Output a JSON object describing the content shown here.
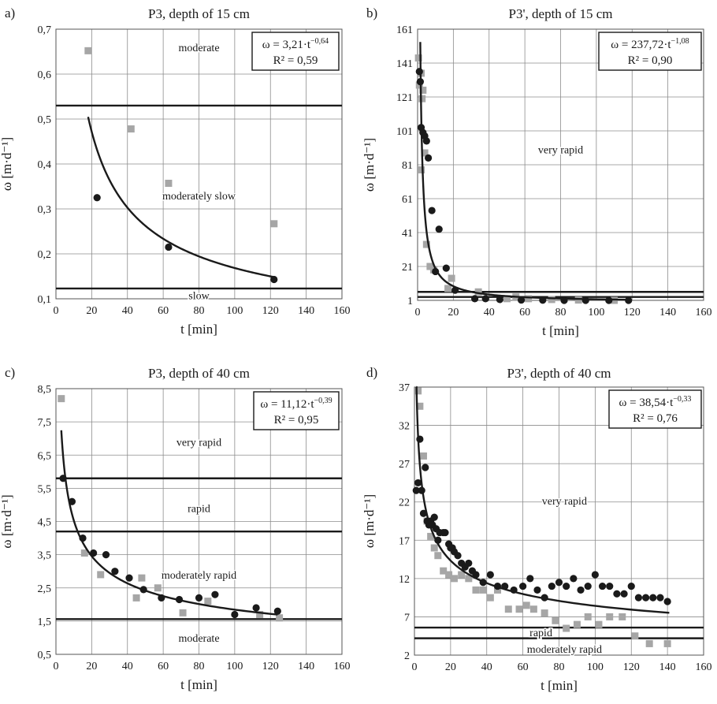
{
  "chart_data": [
    {
      "type": "scatter",
      "panel_label": "a)",
      "title": "P3, depth of 15 cm",
      "xlabel": "t [min]",
      "ylabel": "ω [m·d⁻¹]",
      "xlim": [
        0,
        160
      ],
      "ylim": [
        0.1,
        0.7
      ],
      "xticks": [
        0,
        20,
        40,
        60,
        80,
        100,
        120,
        140,
        160
      ],
      "yticks": [
        0.1,
        0.2,
        0.3,
        0.4,
        0.5,
        0.6,
        0.7
      ],
      "xtick_labels": [
        "0",
        "20",
        "40",
        "60",
        "80",
        "100",
        "120",
        "140",
        "160"
      ],
      "ytick_labels": [
        "0,1",
        "0,2",
        "0,3",
        "0,4",
        "0,5",
        "0,6",
        "0,7"
      ],
      "grid": true,
      "series": [
        {
          "marker": "circle",
          "color": "#1a1a1a",
          "points": [
            [
              23,
              0.325
            ],
            [
              63,
              0.215
            ],
            [
              122,
              0.143
            ]
          ]
        },
        {
          "marker": "square",
          "color": "#a6a6a6",
          "points": [
            [
              18,
              0.652
            ],
            [
              42,
              0.478
            ],
            [
              63,
              0.357
            ],
            [
              122,
              0.267
            ]
          ]
        }
      ],
      "fit": {
        "a": 3.21,
        "b": -0.64,
        "x_range": [
          18,
          122
        ]
      },
      "equation": {
        "prefix": "ω = 3,21·t",
        "exponent": "−0,64",
        "r2": "R² = 0,59"
      },
      "hlines": [
        0.53,
        0.123
      ],
      "zones": [
        {
          "label": "moderate",
          "x": 80,
          "y": 0.66
        },
        {
          "label": "moderately slow",
          "x": 80,
          "y": 0.33
        },
        {
          "label": "slow",
          "x": 80,
          "y": 0.108
        }
      ]
    },
    {
      "type": "scatter",
      "panel_label": "b)",
      "title": "P3', depth of 15 cm",
      "xlabel": "t [min]",
      "ylabel": "ω [m·d⁻¹]",
      "xlim": [
        0,
        160
      ],
      "ylim": [
        1,
        161
      ],
      "xticks": [
        0,
        20,
        40,
        60,
        80,
        100,
        120,
        140,
        160
      ],
      "yticks": [
        1,
        21,
        41,
        61,
        81,
        101,
        121,
        141,
        161
      ],
      "xtick_labels": [
        "0",
        "20",
        "40",
        "60",
        "80",
        "100",
        "120",
        "140",
        "160"
      ],
      "ytick_labels": [
        "1",
        "21",
        "41",
        "61",
        "81",
        "101",
        "121",
        "141",
        "161"
      ],
      "grid": true,
      "series": [
        {
          "marker": "circle",
          "color": "#1a1a1a",
          "points": [
            [
              1,
              136
            ],
            [
              1.5,
              130
            ],
            [
              2,
              103
            ],
            [
              3,
              100
            ],
            [
              4,
              98
            ],
            [
              5,
              95
            ],
            [
              6,
              85
            ],
            [
              8,
              54
            ],
            [
              10,
              18
            ],
            [
              12,
              43
            ],
            [
              16,
              20
            ],
            [
              21,
              7
            ],
            [
              32,
              2
            ],
            [
              38,
              2
            ],
            [
              46,
              1.5
            ],
            [
              58,
              1.2
            ],
            [
              70,
              1.1
            ],
            [
              82,
              1
            ],
            [
              94,
              1
            ],
            [
              107,
              1
            ],
            [
              118,
              1
            ]
          ]
        },
        {
          "marker": "square",
          "color": "#a6a6a6",
          "points": [
            [
              0.5,
              144
            ],
            [
              1,
              128
            ],
            [
              2,
              135
            ],
            [
              2.5,
              120
            ],
            [
              3,
              125
            ],
            [
              4,
              88
            ],
            [
              5,
              34
            ],
            [
              2,
              78
            ],
            [
              7,
              21
            ],
            [
              9,
              19
            ],
            [
              17,
              8
            ],
            [
              19,
              14
            ],
            [
              34,
              6
            ],
            [
              50,
              2
            ],
            [
              55,
              3
            ],
            [
              62,
              2
            ],
            [
              75,
              1.5
            ],
            [
              90,
              1.2
            ],
            [
              110,
              1
            ]
          ]
        }
      ],
      "fit": {
        "a": 237.72,
        "b": -1.08,
        "x_range": [
          1.5,
          118
        ]
      },
      "equation": {
        "prefix": "ω = 237,72·t",
        "exponent": "−1,08",
        "r2": "R² = 0,90"
      },
      "hlines": [
        6,
        3
      ],
      "zones": [
        {
          "label": "very rapid",
          "x": 80,
          "y": 90
        }
      ]
    },
    {
      "type": "scatter",
      "panel_label": "c)",
      "title": "P3, depth of 40 cm",
      "xlabel": "t [min]",
      "ylabel": "ω [m·d⁻¹]",
      "xlim": [
        0,
        160
      ],
      "ylim": [
        0.5,
        8.5
      ],
      "xticks": [
        0,
        20,
        40,
        60,
        80,
        100,
        120,
        140,
        160
      ],
      "yticks": [
        0.5,
        1.5,
        2.5,
        3.5,
        4.5,
        5.5,
        6.5,
        7.5,
        8.5
      ],
      "xtick_labels": [
        "0",
        "20",
        "40",
        "60",
        "80",
        "100",
        "120",
        "140",
        "160"
      ],
      "ytick_labels": [
        "0,5",
        "1,5",
        "2,5",
        "3,5",
        "4,5",
        "5,5",
        "6,5",
        "7,5",
        "8,5"
      ],
      "grid": true,
      "series": [
        {
          "marker": "circle",
          "color": "#1a1a1a",
          "points": [
            [
              4,
              5.8
            ],
            [
              9,
              5.1
            ],
            [
              15,
              4.0
            ],
            [
              21,
              3.55
            ],
            [
              28,
              3.5
            ],
            [
              33,
              3.0
            ],
            [
              41,
              2.8
            ],
            [
              49,
              2.45
            ],
            [
              59,
              2.2
            ],
            [
              69,
              2.15
            ],
            [
              80,
              2.2
            ],
            [
              89,
              2.3
            ],
            [
              100,
              1.7
            ],
            [
              112,
              1.9
            ],
            [
              124,
              1.8
            ]
          ]
        },
        {
          "marker": "square",
          "color": "#a6a6a6",
          "points": [
            [
              3,
              8.2
            ],
            [
              16,
              3.55
            ],
            [
              25,
              2.9
            ],
            [
              45,
              2.2
            ],
            [
              48,
              2.8
            ],
            [
              57,
              2.5
            ],
            [
              71,
              1.75
            ],
            [
              85,
              2.1
            ],
            [
              114,
              1.7
            ],
            [
              125,
              1.6
            ]
          ]
        }
      ],
      "fit": {
        "a": 11.12,
        "b": -0.39,
        "x_range": [
          3,
          124
        ]
      },
      "equation": {
        "prefix": "ω = 11,12·t",
        "exponent": "−0,39",
        "r2": "R² = 0,95"
      },
      "hlines": [
        5.8,
        4.2,
        1.56
      ],
      "zones": [
        {
          "label": "very rapid",
          "x": 80,
          "y": 6.9
        },
        {
          "label": "rapid",
          "x": 80,
          "y": 4.9
        },
        {
          "label": "moderately rapid",
          "x": 80,
          "y": 2.9
        },
        {
          "label": "moderate",
          "x": 80,
          "y": 1.0
        }
      ]
    },
    {
      "type": "scatter",
      "panel_label": "d)",
      "title": "P3', depth of 40 cm",
      "xlabel": "t [min]",
      "ylabel": "ω [m·d⁻¹]",
      "xlim": [
        0,
        160
      ],
      "ylim": [
        2,
        37
      ],
      "xticks": [
        0,
        20,
        40,
        60,
        80,
        100,
        120,
        140,
        160
      ],
      "yticks": [
        2,
        7,
        12,
        17,
        22,
        27,
        32,
        37
      ],
      "xtick_labels": [
        "0",
        "20",
        "40",
        "60",
        "80",
        "100",
        "120",
        "140",
        "160"
      ],
      "ytick_labels": [
        "2",
        "7",
        "12",
        "17",
        "22",
        "27",
        "32",
        "37"
      ],
      "grid": true,
      "series": [
        {
          "marker": "circle",
          "color": "#1a1a1a",
          "points": [
            [
              1,
              23.5
            ],
            [
              2,
              24.5
            ],
            [
              3,
              30.2
            ],
            [
              4,
              23.5
            ],
            [
              5,
              20.5
            ],
            [
              6,
              26.5
            ],
            [
              7,
              19.5
            ],
            [
              8,
              19
            ],
            [
              9,
              19.5
            ],
            [
              10,
              19
            ],
            [
              11,
              20
            ],
            [
              12,
              18.5
            ],
            [
              13,
              17
            ],
            [
              14,
              18
            ],
            [
              16,
              18
            ],
            [
              17,
              18
            ],
            [
              19,
              16.5
            ],
            [
              20,
              16
            ],
            [
              21,
              16
            ],
            [
              22,
              15.5
            ],
            [
              24,
              15
            ],
            [
              26,
              14
            ],
            [
              28,
              13.5
            ],
            [
              30,
              14
            ],
            [
              32,
              13
            ],
            [
              34,
              12.5
            ],
            [
              38,
              11.5
            ],
            [
              42,
              12.5
            ],
            [
              46,
              11
            ],
            [
              50,
              11
            ],
            [
              55,
              10.5
            ],
            [
              60,
              11
            ],
            [
              64,
              12
            ],
            [
              68,
              10.5
            ],
            [
              72,
              9.5
            ],
            [
              76,
              11
            ],
            [
              80,
              11.5
            ],
            [
              84,
              11
            ],
            [
              88,
              12
            ],
            [
              92,
              10.5
            ],
            [
              96,
              11
            ],
            [
              100,
              12.5
            ],
            [
              104,
              11
            ],
            [
              108,
              11
            ],
            [
              112,
              10
            ],
            [
              116,
              10
            ],
            [
              120,
              11
            ],
            [
              124,
              9.5
            ],
            [
              128,
              9.5
            ],
            [
              132,
              9.5
            ],
            [
              136,
              9.5
            ],
            [
              140,
              9
            ]
          ]
        },
        {
          "marker": "square",
          "color": "#a6a6a6",
          "points": [
            [
              2,
              36.5
            ],
            [
              3,
              34.5
            ],
            [
              5,
              28
            ],
            [
              7,
              19.5
            ],
            [
              9,
              17.5
            ],
            [
              11,
              16
            ],
            [
              13,
              15
            ],
            [
              16,
              13
            ],
            [
              19,
              12.5
            ],
            [
              22,
              12
            ],
            [
              26,
              12.5
            ],
            [
              30,
              12
            ],
            [
              34,
              10.5
            ],
            [
              38,
              10.5
            ],
            [
              42,
              9.5
            ],
            [
              46,
              10.5
            ],
            [
              52,
              8
            ],
            [
              58,
              8
            ],
            [
              62,
              8.5
            ],
            [
              66,
              8
            ],
            [
              72,
              7.5
            ],
            [
              78,
              6.5
            ],
            [
              84,
              5.5
            ],
            [
              90,
              6
            ],
            [
              96,
              7
            ],
            [
              102,
              6
            ],
            [
              108,
              7
            ],
            [
              115,
              7
            ],
            [
              122,
              4.5
            ],
            [
              130,
              3.5
            ],
            [
              140,
              3.5
            ]
          ]
        }
      ],
      "fit": {
        "a": 38.54,
        "b": -0.33,
        "x_range": [
          1,
          141
        ]
      },
      "equation": {
        "prefix": "ω = 38,54·t",
        "exponent": "−0,33",
        "r2": "R² = 0,76"
      },
      "hlines": [
        5.6,
        4.2
      ],
      "zones": [
        {
          "label": "very rapid",
          "x": 83,
          "y": 22.2
        },
        {
          "label": "rapid",
          "x": 70,
          "y": 5
        },
        {
          "label": "moderately rapid",
          "x": 83,
          "y": 2.8
        }
      ]
    }
  ]
}
